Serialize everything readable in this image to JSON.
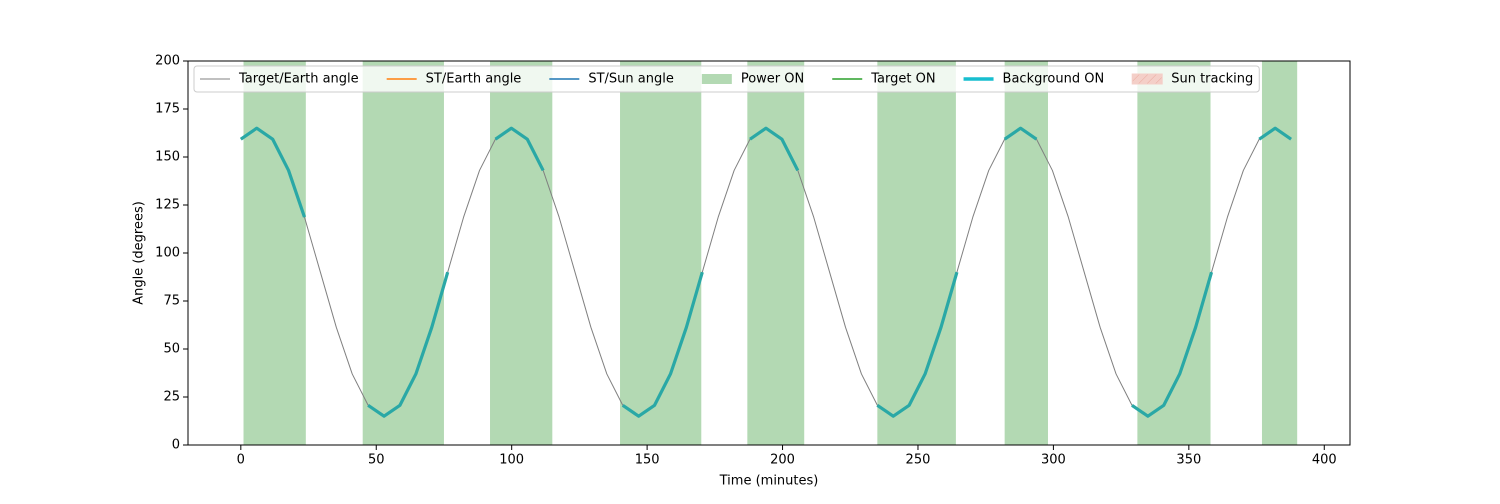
{
  "chart_data": {
    "type": "line",
    "xlabel": "Time (minutes)",
    "ylabel": "Angle (degrees)",
    "xlim": [
      -19.5,
      409.5
    ],
    "ylim": [
      0,
      200
    ],
    "xticks": [
      0,
      50,
      100,
      150,
      200,
      250,
      300,
      350,
      400
    ],
    "yticks": [
      0,
      25,
      50,
      75,
      100,
      125,
      150,
      175,
      200
    ],
    "x": [
      0,
      5.875,
      11.75,
      17.625,
      23.5,
      29.375,
      35.25,
      41.125,
      47,
      52.875,
      58.75,
      64.625,
      70.5,
      76.375,
      82.25,
      88.125,
      94,
      99.875,
      105.75,
      111.625,
      117.5,
      123.375,
      129.25,
      135.125,
      141,
      146.875,
      152.75,
      158.625,
      164.5,
      170.375,
      176.25,
      182.125,
      188,
      193.875,
      199.75,
      205.625,
      211.5,
      217.375,
      223.25,
      229.125,
      235,
      240.875,
      246.75,
      252.625,
      258.5,
      264.375,
      270.25,
      276.125,
      282,
      287.875,
      293.75,
      299.625,
      305.5,
      311.375,
      317.25,
      323.125,
      329,
      334.875,
      340.75,
      346.625,
      352.5,
      358.375,
      364.25,
      370.125,
      376,
      381.875,
      387.75
    ],
    "series": [
      {
        "name": "Target/Earth angle",
        "color": "#808080",
        "width": 1,
        "values": [
          159.3,
          165,
          159.3,
          143,
          118.7,
          90,
          61.3,
          37,
          20.7,
          15,
          20.7,
          37,
          61.3,
          90,
          118.7,
          143,
          159.3,
          165,
          159.3,
          143,
          118.7,
          90,
          61.3,
          37,
          20.7,
          15,
          20.7,
          37,
          61.3,
          90,
          118.7,
          143,
          159.3,
          165,
          159.3,
          143,
          118.7,
          90,
          61.3,
          37,
          20.7,
          15,
          20.7,
          37,
          61.3,
          90,
          118.7,
          143,
          159.3,
          165,
          159.3,
          143,
          118.7,
          90,
          61.3,
          37,
          20.7,
          15,
          20.7,
          37,
          61.3,
          90,
          118.7,
          143,
          159.3,
          165,
          159.3
        ]
      },
      {
        "name": "Background ON",
        "color": "#2aa8a6",
        "width": 3.2,
        "values": [
          159.3,
          165,
          159.3,
          143,
          118.7,
          null,
          null,
          null,
          20.7,
          15,
          20.7,
          37,
          61.3,
          90,
          null,
          null,
          159.3,
          165,
          159.3,
          143,
          null,
          null,
          null,
          null,
          20.7,
          15,
          20.7,
          37,
          61.3,
          90,
          null,
          null,
          159.3,
          165,
          159.3,
          143,
          null,
          null,
          null,
          null,
          20.7,
          15,
          20.7,
          37,
          61.3,
          90,
          null,
          null,
          159.3,
          165,
          159.3,
          null,
          null,
          null,
          null,
          null,
          20.7,
          15,
          20.7,
          37,
          61.3,
          90,
          null,
          null,
          159.3,
          165,
          159.3
        ]
      }
    ],
    "spans": {
      "name": "Power ON",
      "color": "#b3d9b3",
      "ranges": [
        [
          1,
          24
        ],
        [
          45,
          75
        ],
        [
          92,
          115
        ],
        [
          140,
          170
        ],
        [
          187,
          208
        ],
        [
          235,
          264
        ],
        [
          282,
          298
        ],
        [
          331,
          358
        ],
        [
          377,
          390
        ]
      ]
    },
    "legend_only": [
      {
        "name": "ST/Earth angle",
        "color": "#ff7f0e",
        "style": "line"
      },
      {
        "name": "ST/Sun angle",
        "color": "#1f77b4",
        "style": "line"
      },
      {
        "name": "Target ON",
        "color": "#2ca02c",
        "style": "line"
      },
      {
        "name": "Sun tracking",
        "color": "#f4cfc8",
        "style": "hatch"
      }
    ]
  }
}
